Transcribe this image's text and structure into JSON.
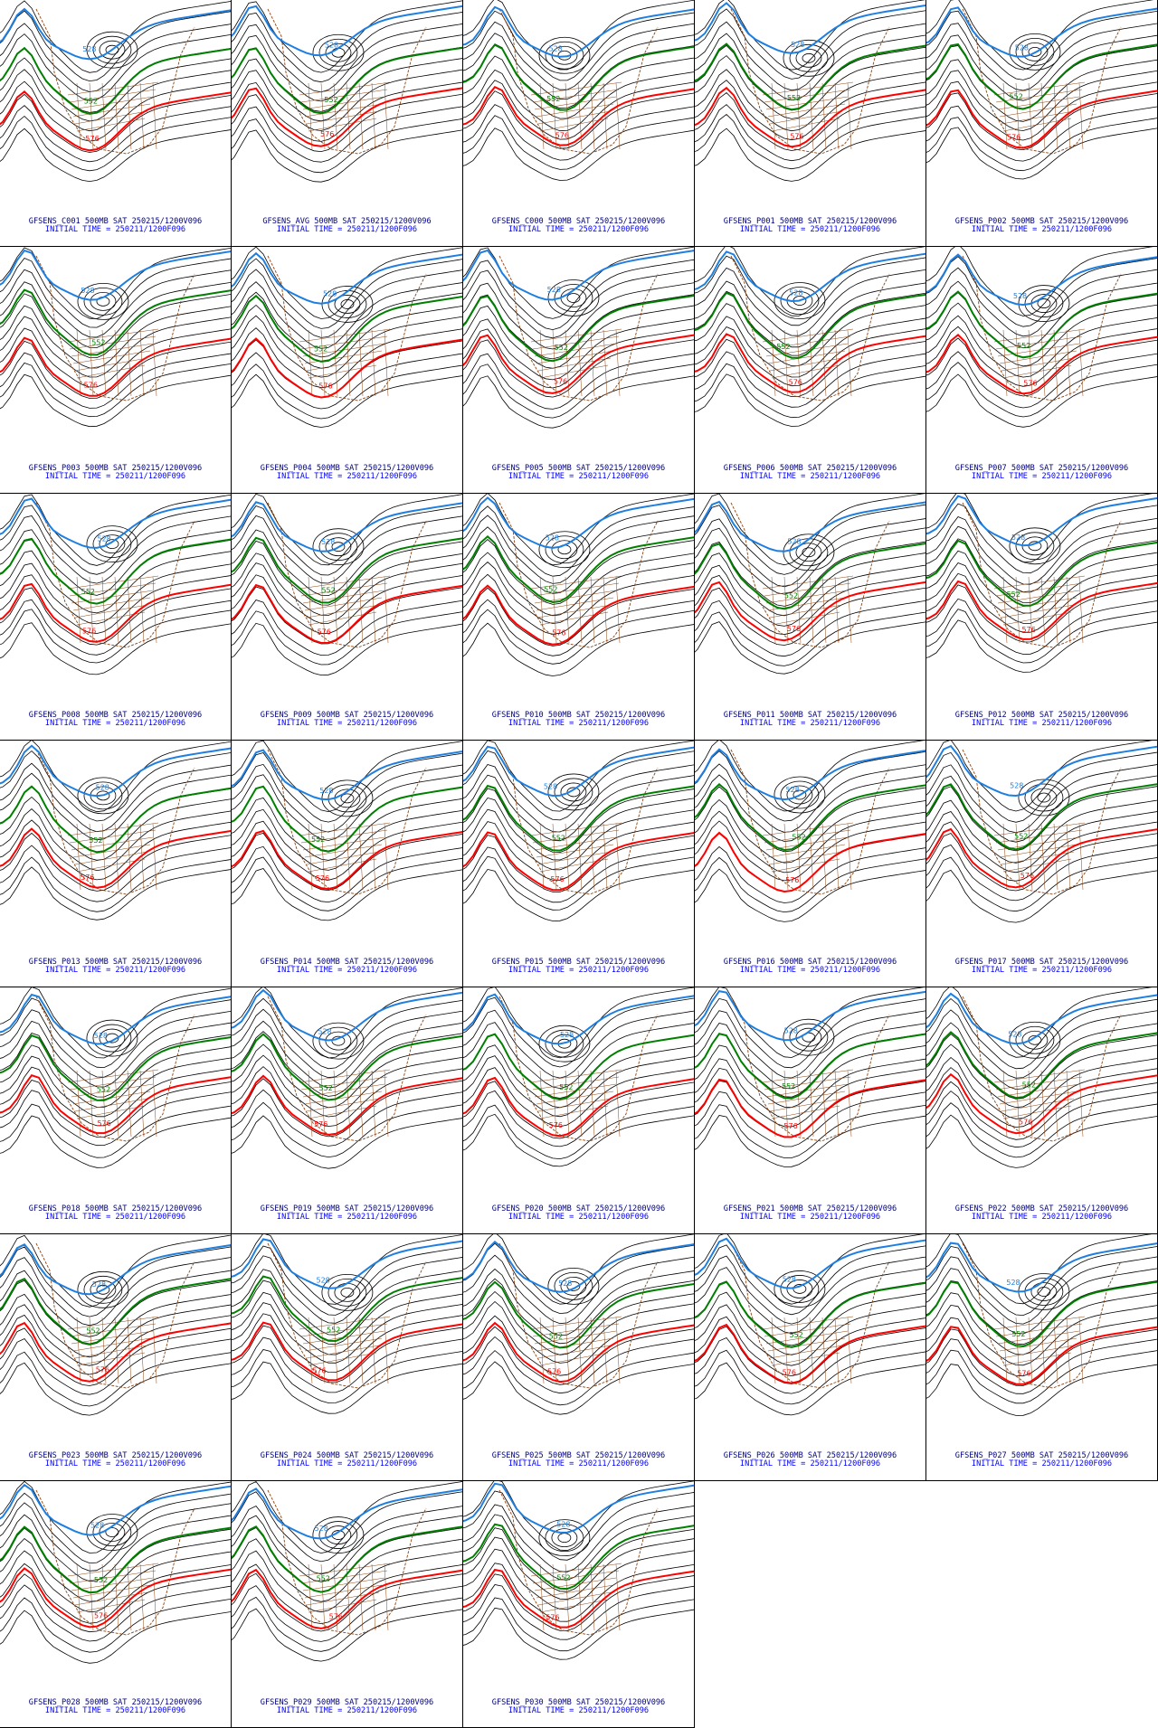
{
  "colors": {
    "height_contour": "#000000",
    "contour_528": "#1e7fe0",
    "contour_552": "#008000",
    "contour_576": "#ff0000",
    "map_boundaries": "#8b4513",
    "caption_line1": "#000080",
    "caption_line2": "#0000ff"
  },
  "contour_labels": {
    "blue": "528",
    "green": "552",
    "red": "576"
  },
  "panels": [
    {
      "name": "C001",
      "line1": "GFSENS_C001 500MB SAT 250215/1200V096",
      "line2": "INITIAL TIME = 250211/1200F096"
    },
    {
      "name": "AVG",
      "line1": "GFSENS_AVG 500MB SAT 250215/1200V096",
      "line2": "INITIAL TIME = 250211/1200F096"
    },
    {
      "name": "C000",
      "line1": "GFSENS_C000 500MB SAT 250215/1200V096",
      "line2": "INITIAL TIME = 250211/1200F096"
    },
    {
      "name": "P001",
      "line1": "GFSENS_P001 500MB SAT 250215/1200V096",
      "line2": "INITIAL TIME = 250211/1200F096"
    },
    {
      "name": "P002",
      "line1": "GFSENS_P002 500MB SAT 250215/1200V096",
      "line2": "INITIAL TIME = 250211/1200F096"
    },
    {
      "name": "P003",
      "line1": "GFSENS_P003 500MB SAT 250215/1200V096",
      "line2": "INITIAL TIME = 250211/1200F096"
    },
    {
      "name": "P004",
      "line1": "GFSENS_P004 500MB SAT 250215/1200V096",
      "line2": "INITIAL TIME = 250211/1200F096"
    },
    {
      "name": "P005",
      "line1": "GFSENS_P005 500MB SAT 250215/1200V096",
      "line2": "INITIAL TIME = 250211/1200F096"
    },
    {
      "name": "P006",
      "line1": "GFSENS_P006 500MB SAT 250215/1200V096",
      "line2": "INITIAL TIME = 250211/1200F096"
    },
    {
      "name": "P007",
      "line1": "GFSENS_P007 500MB SAT 250215/1200V096",
      "line2": "INITIAL TIME = 250211/1200F096"
    },
    {
      "name": "P008",
      "line1": "GFSENS_P008 500MB SAT 250215/1200V096",
      "line2": "INITIAL TIME = 250211/1200F096"
    },
    {
      "name": "P009",
      "line1": "GFSENS_P009 500MB SAT 250215/1200V096",
      "line2": "INITIAL TIME = 250211/1200F096"
    },
    {
      "name": "P010",
      "line1": "GFSENS_P010 500MB SAT 250215/1200V096",
      "line2": "INITIAL TIME = 250211/1200F096"
    },
    {
      "name": "P011",
      "line1": "GFSENS_P011 500MB SAT 250215/1200V096",
      "line2": "INITIAL TIME = 250211/1200F096"
    },
    {
      "name": "P012",
      "line1": "GFSENS_P012 500MB SAT 250215/1200V096",
      "line2": "INITIAL TIME = 250211/1200F096"
    },
    {
      "name": "P013",
      "line1": "GFSENS_P013 500MB SAT 250215/1200V096",
      "line2": "INITIAL TIME = 250211/1200F096"
    },
    {
      "name": "P014",
      "line1": "GFSENS_P014 500MB SAT 250215/1200V096",
      "line2": "INITIAL TIME = 250211/1200F096"
    },
    {
      "name": "P015",
      "line1": "GFSENS_P015 500MB SAT 250215/1200V096",
      "line2": "INITIAL TIME = 250211/1200F096"
    },
    {
      "name": "P016",
      "line1": "GFSENS_P016 500MB SAT 250215/1200V096",
      "line2": "INITIAL TIME = 250211/1200F096"
    },
    {
      "name": "P017",
      "line1": "GFSENS_P017 500MB SAT 250215/1200V096",
      "line2": "INITIAL TIME = 250211/1200F096"
    },
    {
      "name": "P018",
      "line1": "GFSENS_P018 500MB SAT 250215/1200V096",
      "line2": "INITIAL TIME = 250211/1200F096"
    },
    {
      "name": "P019",
      "line1": "GFSENS_P019 500MB SAT 250215/1200V096",
      "line2": "INITIAL TIME = 250211/1200F096"
    },
    {
      "name": "P020",
      "line1": "GFSENS_P020 500MB SAT 250215/1200V096",
      "line2": "INITIAL TIME = 250211/1200F096"
    },
    {
      "name": "P021",
      "line1": "GFSENS_P021 500MB SAT 250215/1200V096",
      "line2": "INITIAL TIME = 250211/1200F096"
    },
    {
      "name": "P022",
      "line1": "GFSENS_P022 500MB SAT 250215/1200V096",
      "line2": "INITIAL TIME = 250211/1200F096"
    },
    {
      "name": "P023",
      "line1": "GFSENS_P023 500MB SAT 250215/1200V096",
      "line2": "INITIAL TIME = 250211/1200F096"
    },
    {
      "name": "P024",
      "line1": "GFSENS_P024 500MB SAT 250215/1200V096",
      "line2": "INITIAL TIME = 250211/1200F096"
    },
    {
      "name": "P025",
      "line1": "GFSENS_P025 500MB SAT 250215/1200V096",
      "line2": "INITIAL TIME = 250211/1200F096"
    },
    {
      "name": "P026",
      "line1": "GFSENS_P026 500MB SAT 250215/1200V096",
      "line2": "INITIAL TIME = 250211/1200F096"
    },
    {
      "name": "P027",
      "line1": "GFSENS_P027 500MB SAT 250215/1200V096",
      "line2": "INITIAL TIME = 250211/1200F096"
    },
    {
      "name": "P028",
      "line1": "GFSENS_P028 500MB SAT 250215/1200V096",
      "line2": "INITIAL TIME = 250211/1200F096"
    },
    {
      "name": "P029",
      "line1": "GFSENS_P029 500MB SAT 250215/1200V096",
      "line2": "INITIAL TIME = 250211/1200F096"
    },
    {
      "name": "P030",
      "line1": "GFSENS_P030 500MB SAT 250215/1200V096",
      "line2": "INITIAL TIME = 250211/1200F096"
    }
  ]
}
